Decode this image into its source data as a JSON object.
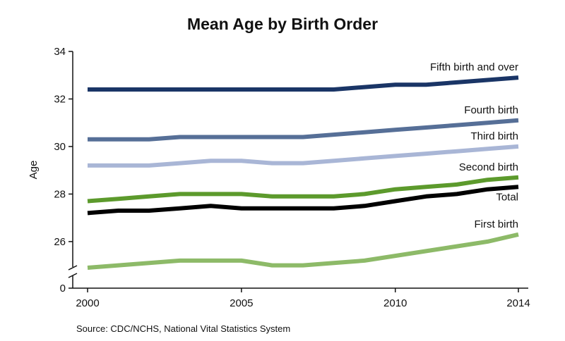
{
  "chart_data": {
    "type": "line",
    "title": "Mean Age by Birth Order",
    "xlabel": "",
    "ylabel": "Age",
    "source": "Source: CDC/NCHS, National Vital Statistics System",
    "x": [
      2000,
      2001,
      2002,
      2003,
      2004,
      2005,
      2006,
      2007,
      2008,
      2009,
      2010,
      2011,
      2012,
      2013,
      2014
    ],
    "x_ticks": [
      2000,
      2005,
      2010,
      2014
    ],
    "y_ticks": [
      0,
      26,
      28,
      30,
      32,
      34
    ],
    "ylim_upper": [
      24.9,
      34
    ],
    "axis_break": true,
    "grid": false,
    "legend": "labels at line ends",
    "series": [
      {
        "name": "Fifth birth and over",
        "color": "#1a3566",
        "values": [
          32.4,
          32.4,
          32.4,
          32.4,
          32.4,
          32.4,
          32.4,
          32.4,
          32.4,
          32.5,
          32.6,
          32.6,
          32.7,
          32.8,
          32.9
        ]
      },
      {
        "name": "Fourth birth",
        "color": "#566f97",
        "values": [
          30.3,
          30.3,
          30.3,
          30.4,
          30.4,
          30.4,
          30.4,
          30.4,
          30.5,
          30.6,
          30.7,
          30.8,
          30.9,
          31.0,
          31.1
        ]
      },
      {
        "name": "Third birth",
        "color": "#a9b6d6",
        "values": [
          29.2,
          29.2,
          29.2,
          29.3,
          29.4,
          29.4,
          29.3,
          29.3,
          29.4,
          29.5,
          29.6,
          29.7,
          29.8,
          29.9,
          30.0
        ]
      },
      {
        "name": "Second birth",
        "color": "#5c9a2c",
        "values": [
          27.7,
          27.8,
          27.9,
          28.0,
          28.0,
          28.0,
          27.9,
          27.9,
          27.9,
          28.0,
          28.2,
          28.3,
          28.4,
          28.6,
          28.7
        ]
      },
      {
        "name": "Total",
        "color": "#000000",
        "values": [
          27.2,
          27.3,
          27.3,
          27.4,
          27.5,
          27.4,
          27.4,
          27.4,
          27.4,
          27.5,
          27.7,
          27.9,
          28.0,
          28.2,
          28.3
        ]
      },
      {
        "name": "First birth",
        "color": "#8dba68",
        "values": [
          24.9,
          25.0,
          25.1,
          25.2,
          25.2,
          25.2,
          25.0,
          25.0,
          25.1,
          25.2,
          25.4,
          25.6,
          25.8,
          26.0,
          26.3
        ]
      }
    ]
  }
}
